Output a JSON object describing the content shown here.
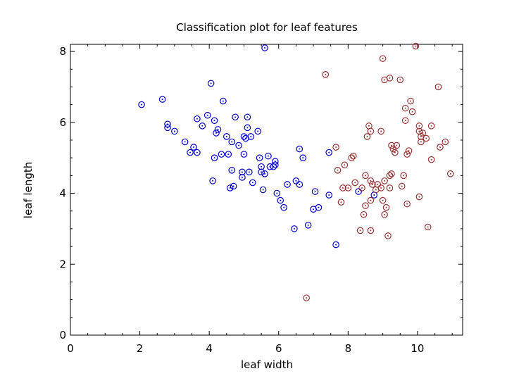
{
  "chart_data": {
    "type": "scatter",
    "title": "Classification plot for leaf features",
    "xlabel": "leaf width",
    "ylabel": "leaf length",
    "xlim": [
      0,
      11.3
    ],
    "ylim": [
      0,
      8.2
    ],
    "xticks": [
      0,
      2,
      4,
      6,
      8,
      10
    ],
    "yticks": [
      0,
      2,
      4,
      6,
      8
    ],
    "grid": false,
    "legend": "none",
    "series": [
      {
        "color": "#0000cc",
        "marker": "circle-dot",
        "points": [
          [
            2.05,
            6.5
          ],
          [
            2.65,
            6.65
          ],
          [
            2.8,
            5.95
          ],
          [
            2.8,
            5.85
          ],
          [
            3.0,
            5.75
          ],
          [
            3.3,
            5.45
          ],
          [
            3.45,
            5.15
          ],
          [
            3.55,
            5.3
          ],
          [
            3.65,
            6.1
          ],
          [
            3.65,
            5.15
          ],
          [
            3.8,
            5.9
          ],
          [
            3.95,
            6.2
          ],
          [
            4.05,
            7.1
          ],
          [
            4.1,
            4.35
          ],
          [
            4.15,
            6.05
          ],
          [
            4.15,
            5.0
          ],
          [
            4.2,
            5.7
          ],
          [
            4.25,
            5.8
          ],
          [
            4.35,
            5.1
          ],
          [
            4.4,
            6.6
          ],
          [
            4.5,
            5.6
          ],
          [
            4.55,
            5.1
          ],
          [
            4.6,
            4.15
          ],
          [
            4.65,
            5.45
          ],
          [
            4.65,
            4.65
          ],
          [
            4.7,
            4.2
          ],
          [
            4.75,
            6.15
          ],
          [
            4.85,
            5.35
          ],
          [
            4.95,
            4.6
          ],
          [
            4.95,
            4.45
          ],
          [
            5.0,
            5.1
          ],
          [
            5.0,
            5.6
          ],
          [
            5.05,
            5.55
          ],
          [
            5.1,
            5.85
          ],
          [
            5.1,
            6.15
          ],
          [
            5.15,
            4.6
          ],
          [
            5.2,
            5.6
          ],
          [
            5.25,
            4.3
          ],
          [
            5.4,
            5.75
          ],
          [
            5.45,
            5.0
          ],
          [
            5.5,
            4.75
          ],
          [
            5.5,
            4.6
          ],
          [
            5.55,
            4.1
          ],
          [
            5.6,
            4.55
          ],
          [
            5.6,
            8.1
          ],
          [
            5.7,
            5.05
          ],
          [
            5.75,
            4.75
          ],
          [
            5.85,
            4.75
          ],
          [
            5.9,
            4.8
          ],
          [
            5.9,
            4.9
          ],
          [
            5.95,
            4.0
          ],
          [
            6.05,
            3.8
          ],
          [
            6.15,
            3.6
          ],
          [
            6.25,
            4.25
          ],
          [
            6.45,
            3.0
          ],
          [
            6.5,
            4.35
          ],
          [
            6.6,
            4.25
          ],
          [
            6.6,
            5.25
          ],
          [
            6.7,
            5.0
          ],
          [
            6.85,
            3.1
          ],
          [
            7.0,
            3.55
          ],
          [
            7.05,
            4.05
          ],
          [
            7.15,
            3.6
          ],
          [
            7.45,
            3.95
          ],
          [
            7.45,
            5.15
          ],
          [
            7.65,
            2.55
          ],
          [
            8.3,
            4.05
          ],
          [
            8.75,
            3.95
          ]
        ]
      },
      {
        "color": "#993333",
        "marker": "circle-dot",
        "points": [
          [
            6.8,
            1.05
          ],
          [
            7.35,
            7.35
          ],
          [
            7.65,
            5.3
          ],
          [
            7.7,
            4.65
          ],
          [
            7.8,
            3.75
          ],
          [
            7.85,
            4.15
          ],
          [
            7.9,
            4.8
          ],
          [
            8.0,
            4.15
          ],
          [
            8.1,
            5.0
          ],
          [
            8.15,
            5.05
          ],
          [
            8.2,
            4.3
          ],
          [
            8.35,
            2.95
          ],
          [
            8.4,
            4.15
          ],
          [
            8.45,
            3.4
          ],
          [
            8.5,
            3.65
          ],
          [
            8.5,
            4.5
          ],
          [
            8.55,
            5.6
          ],
          [
            8.6,
            5.9
          ],
          [
            8.65,
            5.75
          ],
          [
            8.65,
            4.35
          ],
          [
            8.65,
            3.8
          ],
          [
            8.65,
            2.95
          ],
          [
            8.7,
            4.25
          ],
          [
            8.8,
            4.1
          ],
          [
            8.85,
            4.25
          ],
          [
            8.95,
            5.75
          ],
          [
            8.95,
            4.15
          ],
          [
            9.0,
            3.8
          ],
          [
            9.0,
            7.8
          ],
          [
            9.05,
            7.2
          ],
          [
            9.05,
            4.35
          ],
          [
            9.05,
            3.4
          ],
          [
            9.1,
            3.6
          ],
          [
            9.15,
            2.8
          ],
          [
            9.2,
            4.15
          ],
          [
            9.2,
            4.5
          ],
          [
            9.2,
            7.25
          ],
          [
            9.25,
            4.55
          ],
          [
            9.25,
            5.35
          ],
          [
            9.3,
            5.25
          ],
          [
            9.35,
            5.15
          ],
          [
            9.4,
            5.35
          ],
          [
            9.5,
            7.2
          ],
          [
            9.55,
            4.2
          ],
          [
            9.6,
            4.5
          ],
          [
            9.65,
            6.4
          ],
          [
            9.65,
            6.05
          ],
          [
            9.7,
            3.7
          ],
          [
            9.7,
            5.1
          ],
          [
            9.75,
            5.2
          ],
          [
            9.8,
            6.6
          ],
          [
            9.85,
            6.3
          ],
          [
            9.95,
            8.15
          ],
          [
            10.05,
            5.75
          ],
          [
            10.05,
            3.9
          ],
          [
            10.05,
            5.9
          ],
          [
            10.1,
            5.45
          ],
          [
            10.1,
            5.6
          ],
          [
            10.15,
            5.7
          ],
          [
            10.25,
            5.55
          ],
          [
            10.3,
            3.05
          ],
          [
            10.4,
            5.9
          ],
          [
            10.4,
            4.95
          ],
          [
            10.6,
            7.0
          ],
          [
            10.65,
            5.3
          ],
          [
            10.8,
            5.45
          ],
          [
            10.95,
            4.55
          ]
        ]
      }
    ]
  }
}
